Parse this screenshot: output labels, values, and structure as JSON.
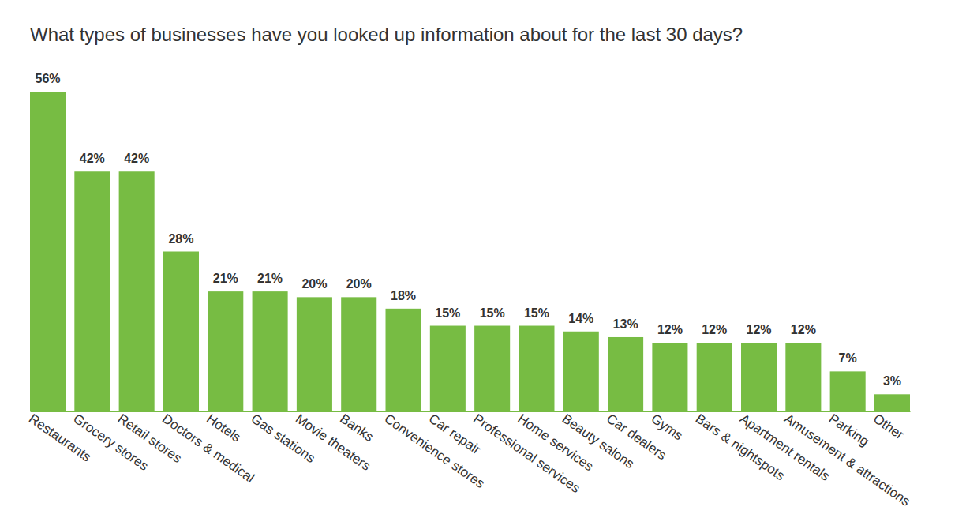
{
  "chart_data": {
    "type": "bar",
    "title": "What types of businesses have you looked up information about for the last 30 days?",
    "categories": [
      "Restaurants",
      "Grocery stores",
      "Retail stores",
      "Doctors & medical",
      "Hotels",
      "Gas stations",
      "Movie theaters",
      "Banks",
      "Convenience stores",
      "Car repair",
      "Professional services",
      "Home services",
      "Beauty salons",
      "Car dealers",
      "Gyms",
      "Bars & nightspots",
      "Apartment rentals",
      "Amusement & attractions",
      "Parking",
      "Other"
    ],
    "values": [
      56,
      42,
      42,
      28,
      21,
      21,
      20,
      20,
      18,
      15,
      15,
      15,
      14,
      13,
      12,
      12,
      12,
      12,
      7,
      3
    ],
    "value_labels": [
      "56%",
      "42%",
      "42%",
      "28%",
      "21%",
      "21%",
      "20%",
      "20%",
      "18%",
      "15%",
      "15%",
      "15%",
      "14%",
      "13%",
      "12%",
      "12%",
      "12%",
      "12%",
      "7%",
      "3%"
    ],
    "color": "#77bc43",
    "ylim": [
      0,
      56
    ],
    "grid": false,
    "data_labels": true,
    "tick_labels": "x"
  }
}
